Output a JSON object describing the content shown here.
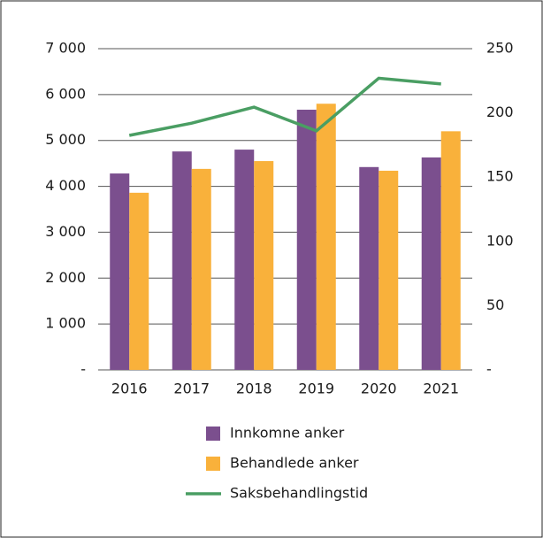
{
  "chart_data": {
    "type": "bar",
    "categories": [
      "2016",
      "2017",
      "2018",
      "2019",
      "2020",
      "2021"
    ],
    "series": [
      {
        "name": "Innkomne anker",
        "color": "#7b4f8e",
        "values": [
          4280,
          4760,
          4800,
          5670,
          4420,
          4630
        ]
      },
      {
        "name": "Behandlede anker",
        "color": "#f9b13b",
        "values": [
          3860,
          4380,
          4550,
          5800,
          4340,
          5200
        ]
      },
      {
        "name": "Saksbehandlingstid",
        "color": "#4a9e63",
        "type": "line",
        "axis": "y2",
        "values": [
          182.5,
          192,
          204.5,
          186,
          227,
          222.5
        ]
      }
    ],
    "ylim": [
      0,
      7000
    ],
    "yticks": [
      {
        "value": 0,
        "label": "-"
      },
      {
        "value": 1000,
        "label": "1 000"
      },
      {
        "value": 2000,
        "label": "2 000"
      },
      {
        "value": 3000,
        "label": "3 000"
      },
      {
        "value": 4000,
        "label": "4 000"
      },
      {
        "value": 5000,
        "label": "5 000"
      },
      {
        "value": 6000,
        "label": "6 000"
      },
      {
        "value": 7000,
        "label": "7 000"
      }
    ],
    "y2lim": [
      0,
      250
    ],
    "y2ticks": [
      {
        "value": 0,
        "label": "-"
      },
      50,
      100,
      150,
      200,
      250
    ],
    "grid": true,
    "legend": "bottom"
  }
}
